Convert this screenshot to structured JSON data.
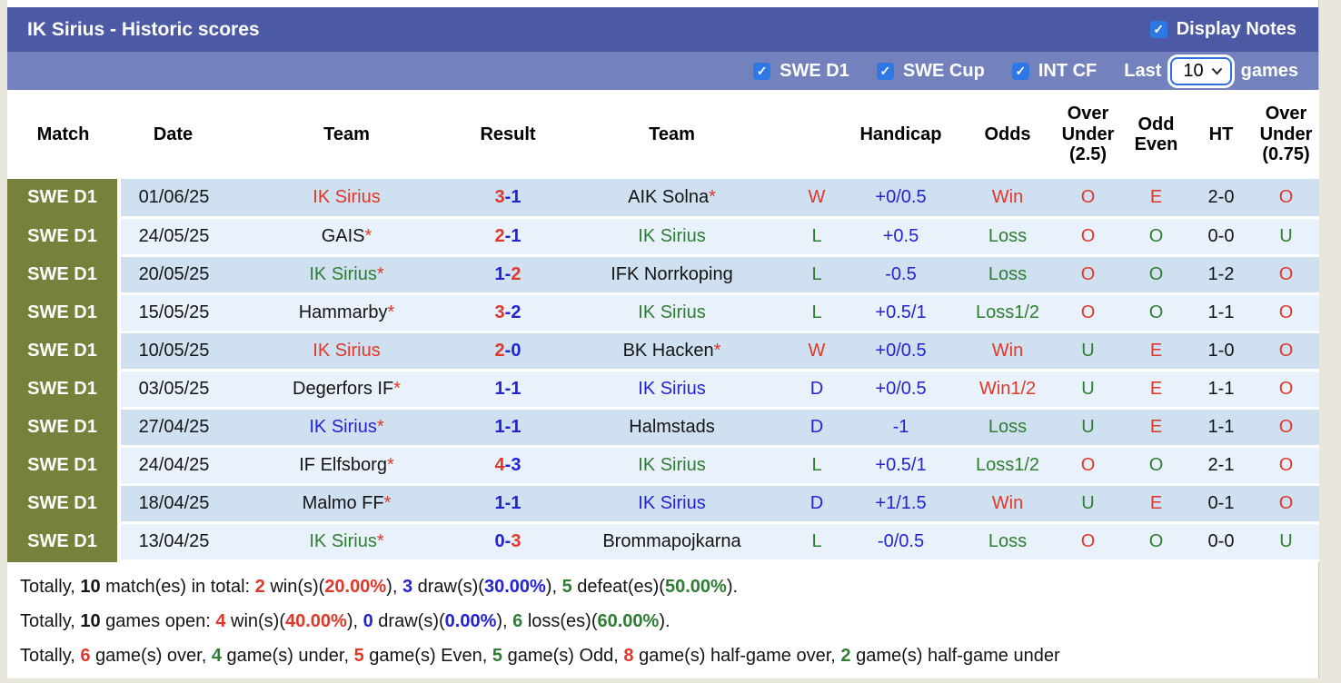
{
  "title": "IK Sirius - Historic scores",
  "controls": {
    "display_notes": {
      "label": "Display Notes",
      "checked": true
    },
    "filters": [
      {
        "label": "SWE D1",
        "checked": true
      },
      {
        "label": "SWE Cup",
        "checked": true
      },
      {
        "label": "INT CF",
        "checked": true
      }
    ],
    "last_label": "Last",
    "games_value": "10",
    "games_label": "games"
  },
  "colors": {
    "header_dark": "#4c59a5",
    "header_light": "#7381bc",
    "checkbox_blue": "#2e78e6",
    "league_olive": "#77813c",
    "row_dark": "#cfe1f1",
    "row_light": "#e9f2fa",
    "win_red": "#df382a",
    "loss_green": "#2e7d32",
    "draw_blue": "#2323d2"
  },
  "table": {
    "headers": {
      "match": "Match",
      "date": "Date",
      "team_home": "Team",
      "result": "Result",
      "team_away": "Team",
      "outcome": "",
      "handicap": "Handicap",
      "odds": "Odds",
      "over_under_25": "Over\nUnder\n(2.5)",
      "odd_even": "Odd\nEven",
      "ht": "HT",
      "over_under_075": "Over\nUnder\n(0.75)"
    },
    "rows": [
      {
        "league": "SWE D1",
        "date": "01/06/25",
        "home": {
          "name": "IK Sirius",
          "color": "red",
          "star": false
        },
        "score": {
          "home": "3",
          "home_color": "red",
          "away": "1",
          "away_color": "blue"
        },
        "away": {
          "name": "AIK Solna",
          "color": "black",
          "star": true
        },
        "outcome": {
          "text": "W",
          "color": "red"
        },
        "handicap": "+0/0.5",
        "odds": {
          "text": "Win",
          "color": "red"
        },
        "ou25": {
          "text": "O",
          "color": "red"
        },
        "odd_even": {
          "text": "E",
          "color": "red"
        },
        "ht": "2-0",
        "ou075": {
          "text": "O",
          "color": "red"
        }
      },
      {
        "league": "SWE D1",
        "date": "24/05/25",
        "home": {
          "name": "GAIS",
          "color": "black",
          "star": true
        },
        "score": {
          "home": "2",
          "home_color": "red",
          "away": "1",
          "away_color": "blue"
        },
        "away": {
          "name": "IK Sirius",
          "color": "green",
          "star": false
        },
        "outcome": {
          "text": "L",
          "color": "green"
        },
        "handicap": "+0.5",
        "odds": {
          "text": "Loss",
          "color": "green"
        },
        "ou25": {
          "text": "O",
          "color": "red"
        },
        "odd_even": {
          "text": "O",
          "color": "green"
        },
        "ht": "0-0",
        "ou075": {
          "text": "U",
          "color": "green"
        }
      },
      {
        "league": "SWE D1",
        "date": "20/05/25",
        "home": {
          "name": "IK Sirius",
          "color": "green",
          "star": true
        },
        "score": {
          "home": "1",
          "home_color": "blue",
          "away": "2",
          "away_color": "red"
        },
        "away": {
          "name": "IFK Norrkoping",
          "color": "black",
          "star": false
        },
        "outcome": {
          "text": "L",
          "color": "green"
        },
        "handicap": "-0.5",
        "odds": {
          "text": "Loss",
          "color": "green"
        },
        "ou25": {
          "text": "O",
          "color": "red"
        },
        "odd_even": {
          "text": "O",
          "color": "green"
        },
        "ht": "1-2",
        "ou075": {
          "text": "O",
          "color": "red"
        }
      },
      {
        "league": "SWE D1",
        "date": "15/05/25",
        "home": {
          "name": "Hammarby",
          "color": "black",
          "star": true
        },
        "score": {
          "home": "3",
          "home_color": "red",
          "away": "2",
          "away_color": "blue"
        },
        "away": {
          "name": "IK Sirius",
          "color": "green",
          "star": false
        },
        "outcome": {
          "text": "L",
          "color": "green"
        },
        "handicap": "+0.5/1",
        "odds": {
          "text": "Loss1/2",
          "color": "green"
        },
        "ou25": {
          "text": "O",
          "color": "red"
        },
        "odd_even": {
          "text": "O",
          "color": "green"
        },
        "ht": "1-1",
        "ou075": {
          "text": "O",
          "color": "red"
        }
      },
      {
        "league": "SWE D1",
        "date": "10/05/25",
        "home": {
          "name": "IK Sirius",
          "color": "red",
          "star": false
        },
        "score": {
          "home": "2",
          "home_color": "red",
          "away": "0",
          "away_color": "blue"
        },
        "away": {
          "name": "BK Hacken",
          "color": "black",
          "star": true
        },
        "outcome": {
          "text": "W",
          "color": "red"
        },
        "handicap": "+0/0.5",
        "odds": {
          "text": "Win",
          "color": "red"
        },
        "ou25": {
          "text": "U",
          "color": "green"
        },
        "odd_even": {
          "text": "E",
          "color": "red"
        },
        "ht": "1-0",
        "ou075": {
          "text": "O",
          "color": "red"
        }
      },
      {
        "league": "SWE D1",
        "date": "03/05/25",
        "home": {
          "name": "Degerfors IF",
          "color": "black",
          "star": true
        },
        "score": {
          "home": "1",
          "home_color": "blue",
          "away": "1",
          "away_color": "blue"
        },
        "away": {
          "name": "IK Sirius",
          "color": "blue",
          "star": false
        },
        "outcome": {
          "text": "D",
          "color": "blue"
        },
        "handicap": "+0/0.5",
        "odds": {
          "text": "Win1/2",
          "color": "red"
        },
        "ou25": {
          "text": "U",
          "color": "green"
        },
        "odd_even": {
          "text": "E",
          "color": "red"
        },
        "ht": "1-1",
        "ou075": {
          "text": "O",
          "color": "red"
        }
      },
      {
        "league": "SWE D1",
        "date": "27/04/25",
        "home": {
          "name": "IK Sirius",
          "color": "blue",
          "star": true
        },
        "score": {
          "home": "1",
          "home_color": "blue",
          "away": "1",
          "away_color": "blue"
        },
        "away": {
          "name": "Halmstads",
          "color": "black",
          "star": false
        },
        "outcome": {
          "text": "D",
          "color": "blue"
        },
        "handicap": "-1",
        "odds": {
          "text": "Loss",
          "color": "green"
        },
        "ou25": {
          "text": "U",
          "color": "green"
        },
        "odd_even": {
          "text": "E",
          "color": "red"
        },
        "ht": "1-1",
        "ou075": {
          "text": "O",
          "color": "red"
        }
      },
      {
        "league": "SWE D1",
        "date": "24/04/25",
        "home": {
          "name": "IF Elfsborg",
          "color": "black",
          "star": true
        },
        "score": {
          "home": "4",
          "home_color": "red",
          "away": "3",
          "away_color": "blue"
        },
        "away": {
          "name": "IK Sirius",
          "color": "green",
          "star": false
        },
        "outcome": {
          "text": "L",
          "color": "green"
        },
        "handicap": "+0.5/1",
        "odds": {
          "text": "Loss1/2",
          "color": "green"
        },
        "ou25": {
          "text": "O",
          "color": "red"
        },
        "odd_even": {
          "text": "O",
          "color": "green"
        },
        "ht": "2-1",
        "ou075": {
          "text": "O",
          "color": "red"
        }
      },
      {
        "league": "SWE D1",
        "date": "18/04/25",
        "home": {
          "name": "Malmo FF",
          "color": "black",
          "star": true
        },
        "score": {
          "home": "1",
          "home_color": "blue",
          "away": "1",
          "away_color": "blue"
        },
        "away": {
          "name": "IK Sirius",
          "color": "blue",
          "star": false
        },
        "outcome": {
          "text": "D",
          "color": "blue"
        },
        "handicap": "+1/1.5",
        "odds": {
          "text": "Win",
          "color": "red"
        },
        "ou25": {
          "text": "U",
          "color": "green"
        },
        "odd_even": {
          "text": "E",
          "color": "red"
        },
        "ht": "0-1",
        "ou075": {
          "text": "O",
          "color": "red"
        }
      },
      {
        "league": "SWE D1",
        "date": "13/04/25",
        "home": {
          "name": "IK Sirius",
          "color": "green",
          "star": true
        },
        "score": {
          "home": "0",
          "home_color": "blue",
          "away": "3",
          "away_color": "red"
        },
        "away": {
          "name": "Brommapojkarna",
          "color": "black",
          "star": false
        },
        "outcome": {
          "text": "L",
          "color": "green"
        },
        "handicap": "-0/0.5",
        "odds": {
          "text": "Loss",
          "color": "green"
        },
        "ou25": {
          "text": "O",
          "color": "red"
        },
        "odd_even": {
          "text": "O",
          "color": "green"
        },
        "ht": "0-0",
        "ou075": {
          "text": "U",
          "color": "green"
        }
      }
    ]
  },
  "summary": {
    "lines": [
      [
        {
          "t": "Totally, "
        },
        {
          "t": "10",
          "b": 1
        },
        {
          "t": " match(es) in total: "
        },
        {
          "t": "2",
          "c": "red",
          "b": 1
        },
        {
          "t": " win(s)("
        },
        {
          "t": "20.00%",
          "c": "red",
          "b": 1
        },
        {
          "t": "), "
        },
        {
          "t": "3",
          "c": "blue",
          "b": 1
        },
        {
          "t": " draw(s)("
        },
        {
          "t": "30.00%",
          "c": "blue",
          "b": 1
        },
        {
          "t": "), "
        },
        {
          "t": "5",
          "c": "green",
          "b": 1
        },
        {
          "t": " defeat(es)("
        },
        {
          "t": "50.00%",
          "c": "green",
          "b": 1
        },
        {
          "t": ")."
        }
      ],
      [
        {
          "t": "Totally, "
        },
        {
          "t": "10",
          "b": 1
        },
        {
          "t": " games open: "
        },
        {
          "t": "4",
          "c": "red",
          "b": 1
        },
        {
          "t": " win(s)("
        },
        {
          "t": "40.00%",
          "c": "red",
          "b": 1
        },
        {
          "t": "), "
        },
        {
          "t": "0",
          "c": "blue",
          "b": 1
        },
        {
          "t": " draw(s)("
        },
        {
          "t": "0.00%",
          "c": "blue",
          "b": 1
        },
        {
          "t": "), "
        },
        {
          "t": "6",
          "c": "green",
          "b": 1
        },
        {
          "t": " loss(es)("
        },
        {
          "t": "60.00%",
          "c": "green",
          "b": 1
        },
        {
          "t": ")."
        }
      ],
      [
        {
          "t": "Totally, "
        },
        {
          "t": "6",
          "c": "red",
          "b": 1
        },
        {
          "t": " game(s) over, "
        },
        {
          "t": "4",
          "c": "green",
          "b": 1
        },
        {
          "t": " game(s) under, "
        },
        {
          "t": "5",
          "c": "red",
          "b": 1
        },
        {
          "t": " game(s) Even, "
        },
        {
          "t": "5",
          "c": "green",
          "b": 1
        },
        {
          "t": " game(s) Odd, "
        },
        {
          "t": "8",
          "c": "red",
          "b": 1
        },
        {
          "t": " game(s) half-game over, "
        },
        {
          "t": "2",
          "c": "green",
          "b": 1
        },
        {
          "t": " game(s) half-game under"
        }
      ]
    ]
  }
}
